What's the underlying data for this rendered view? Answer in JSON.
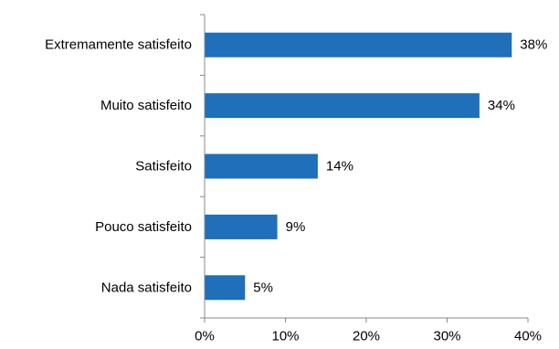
{
  "chart_data": {
    "type": "bar",
    "orientation": "horizontal",
    "title": "",
    "xlabel": "",
    "ylabel": "",
    "categories": [
      "Extremamente satisfeito",
      "Muito satisfeito",
      "Satisfeito",
      "Pouco satisfeito",
      "Nada satisfeito"
    ],
    "values": [
      38,
      34,
      14,
      9,
      5
    ],
    "value_labels": [
      "38%",
      "34%",
      "14%",
      "9%",
      "5%"
    ],
    "xlim": [
      0,
      40
    ],
    "x_ticks": [
      0,
      10,
      20,
      30,
      40
    ],
    "x_tick_labels": [
      "0%",
      "10%",
      "20%",
      "30%",
      "40%"
    ],
    "grid": false,
    "legend": "none",
    "bar_color": "#1f6fba"
  }
}
